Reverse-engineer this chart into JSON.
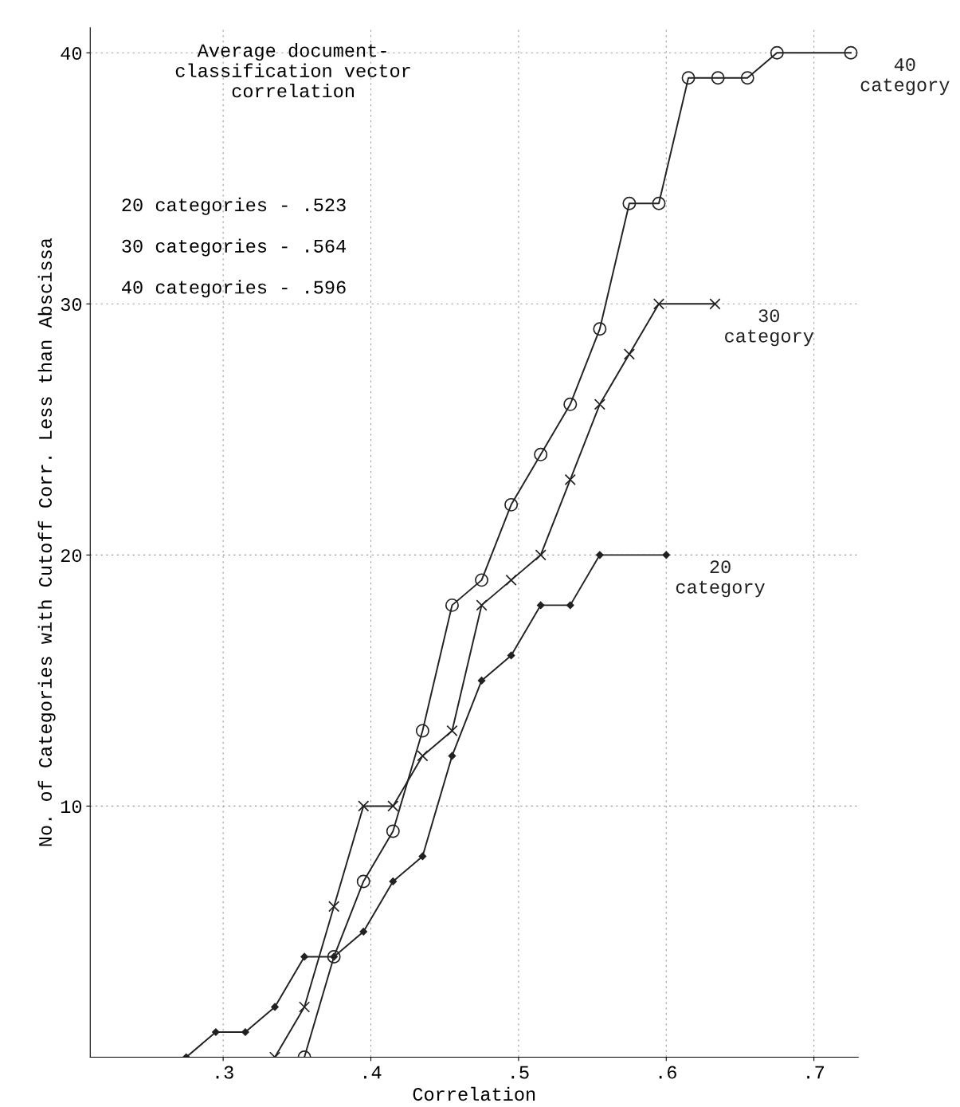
{
  "chart_data": {
    "type": "line",
    "xlabel": "Correlation",
    "ylabel": "No. of Categories with Cutoff Corr. Less than Abscissa",
    "xlim": [
      0.21,
      0.73
    ],
    "xticks": [
      {
        "value": 0.3,
        "label": ".3"
      },
      {
        "value": 0.4,
        "label": ".4"
      },
      {
        "value": 0.5,
        "label": ".5"
      },
      {
        "value": 0.6,
        "label": ".6"
      },
      {
        "value": 0.7,
        "label": ".7"
      }
    ],
    "ylim": [
      0,
      41
    ],
    "yticks": [
      10,
      20,
      30,
      40
    ],
    "grid": true,
    "line_style": "solid",
    "annotations": [
      "Average document-\nclassification vector\ncorrelation",
      "20 categories - .523",
      "30 categories - .564",
      "40 categories - .596"
    ],
    "series": [
      {
        "name": "40\ncategory",
        "color": "#222222",
        "marker": "circle",
        "x": [
          0.355,
          0.375,
          0.395,
          0.415,
          0.435,
          0.455,
          0.475,
          0.495,
          0.515,
          0.535,
          0.555,
          0.575,
          0.595,
          0.615,
          0.635,
          0.655,
          0.675,
          0.725
        ],
        "values": [
          0,
          4,
          7,
          9,
          13,
          18,
          19,
          22,
          24,
          26,
          29,
          34,
          34,
          39,
          39,
          39,
          40,
          40
        ]
      },
      {
        "name": "30\ncategory",
        "color": "#222222",
        "marker": "cross",
        "x": [
          0.335,
          0.355,
          0.375,
          0.395,
          0.415,
          0.435,
          0.455,
          0.475,
          0.495,
          0.515,
          0.535,
          0.555,
          0.575,
          0.595,
          0.633
        ],
        "values": [
          0,
          2,
          6,
          10,
          10,
          12,
          13,
          18,
          19,
          20,
          23,
          26,
          28,
          30,
          30
        ]
      },
      {
        "name": "20\ncategory",
        "color": "#222222",
        "marker": "diamond",
        "x": [
          0.275,
          0.295,
          0.315,
          0.335,
          0.355,
          0.375,
          0.395,
          0.415,
          0.435,
          0.455,
          0.475,
          0.495,
          0.515,
          0.535,
          0.555,
          0.6
        ],
        "values": [
          0,
          1,
          1,
          2,
          4,
          4,
          5,
          7,
          8,
          12,
          15,
          16,
          18,
          18,
          20,
          20
        ]
      }
    ]
  }
}
